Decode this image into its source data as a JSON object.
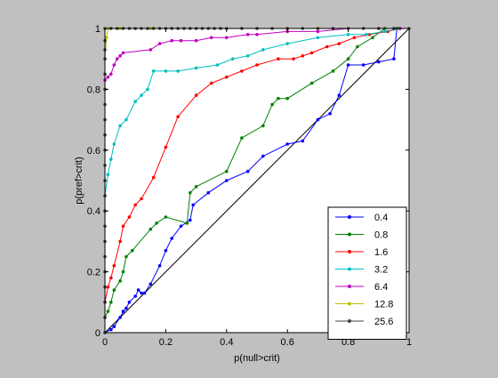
{
  "chart_data": {
    "type": "line",
    "title": "",
    "xlabel": "p(null>crit)",
    "ylabel": "p(pref>crit)",
    "xlim": [
      0,
      1
    ],
    "ylim": [
      0,
      1
    ],
    "xticks": [
      "0",
      "0.2",
      "0.4",
      "0.6",
      "0.8",
      "1"
    ],
    "yticks": [
      "0",
      "0.2",
      "0.4",
      "0.6",
      "0.8",
      "1"
    ],
    "grid": false,
    "legend_position": "bottom-right",
    "reference_line": {
      "x": [
        0,
        1
      ],
      "y": [
        0,
        1
      ],
      "color": "#000000"
    },
    "series": [
      {
        "name": "0.4",
        "color": "#0000ff",
        "x": [
          0,
          0.02,
          0.03,
          0.05,
          0.06,
          0.07,
          0.08,
          0.1,
          0.11,
          0.12,
          0.13,
          0.15,
          0.18,
          0.2,
          0.22,
          0.25,
          0.28,
          0.29,
          0.34,
          0.4,
          0.47,
          0.52,
          0.6,
          0.65,
          0.7,
          0.74,
          0.77,
          0.8,
          0.85,
          0.9,
          0.95,
          0.96
        ],
        "y": [
          0,
          0.01,
          0.02,
          0.05,
          0.07,
          0.08,
          0.1,
          0.12,
          0.14,
          0.13,
          0.13,
          0.16,
          0.22,
          0.27,
          0.31,
          0.35,
          0.37,
          0.42,
          0.46,
          0.5,
          0.53,
          0.58,
          0.62,
          0.63,
          0.7,
          0.72,
          0.78,
          0.88,
          0.88,
          0.89,
          0.9,
          1.0
        ]
      },
      {
        "name": "0.8",
        "color": "#008000",
        "x": [
          0,
          0.01,
          0.02,
          0.03,
          0.05,
          0.06,
          0.07,
          0.09,
          0.15,
          0.17,
          0.2,
          0.27,
          0.28,
          0.3,
          0.4,
          0.45,
          0.52,
          0.55,
          0.57,
          0.6,
          0.68,
          0.75,
          0.8,
          0.83,
          0.88,
          0.92,
          0.96
        ],
        "y": [
          0.05,
          0.07,
          0.1,
          0.14,
          0.17,
          0.2,
          0.25,
          0.27,
          0.34,
          0.36,
          0.38,
          0.36,
          0.46,
          0.48,
          0.53,
          0.64,
          0.68,
          0.75,
          0.77,
          0.77,
          0.82,
          0.86,
          0.9,
          0.94,
          0.97,
          1.0,
          1.0
        ]
      },
      {
        "name": "1.6",
        "color": "#ff0000",
        "x": [
          0,
          0.01,
          0.02,
          0.03,
          0.05,
          0.06,
          0.08,
          0.1,
          0.12,
          0.16,
          0.2,
          0.24,
          0.3,
          0.35,
          0.4,
          0.45,
          0.5,
          0.57,
          0.62,
          0.65,
          0.68,
          0.73,
          0.77,
          0.82,
          0.87,
          0.93,
          0.97
        ],
        "y": [
          0.1,
          0.15,
          0.18,
          0.22,
          0.3,
          0.35,
          0.38,
          0.42,
          0.44,
          0.51,
          0.61,
          0.71,
          0.78,
          0.82,
          0.84,
          0.86,
          0.88,
          0.9,
          0.9,
          0.91,
          0.92,
          0.94,
          0.95,
          0.97,
          0.98,
          0.99,
          1.0
        ]
      },
      {
        "name": "3.2",
        "color": "#00bfbf",
        "x": [
          0,
          0.01,
          0.02,
          0.03,
          0.05,
          0.07,
          0.1,
          0.12,
          0.14,
          0.16,
          0.2,
          0.24,
          0.3,
          0.37,
          0.42,
          0.47,
          0.52,
          0.6,
          0.7,
          0.8,
          0.86,
          0.92,
          0.97
        ],
        "y": [
          0.45,
          0.52,
          0.57,
          0.62,
          0.68,
          0.7,
          0.76,
          0.78,
          0.8,
          0.86,
          0.86,
          0.86,
          0.87,
          0.88,
          0.9,
          0.91,
          0.93,
          0.95,
          0.97,
          0.98,
          0.98,
          0.99,
          1.0
        ]
      },
      {
        "name": "6.4",
        "color": "#bf00bf",
        "x": [
          0,
          0.01,
          0.02,
          0.03,
          0.04,
          0.05,
          0.06,
          0.15,
          0.18,
          0.22,
          0.25,
          0.3,
          0.35,
          0.4,
          0.47,
          0.5,
          0.6,
          0.7,
          0.8,
          0.9,
          0.97
        ],
        "y": [
          0.83,
          0.84,
          0.85,
          0.88,
          0.9,
          0.91,
          0.92,
          0.93,
          0.95,
          0.96,
          0.96,
          0.96,
          0.97,
          0.97,
          0.98,
          0.98,
          0.99,
          0.99,
          1.0,
          1.0,
          1.0
        ]
      },
      {
        "name": "12.8",
        "color": "#bfbf00",
        "x": [
          0,
          0.0,
          0.0,
          0.005,
          0.01,
          0.05,
          0.1,
          0.15,
          0.2,
          0.3,
          0.4,
          0.5,
          0.6,
          0.7,
          0.8,
          0.9,
          1.0
        ],
        "y": [
          0.7,
          0.8,
          0.9,
          0.97,
          1.0,
          1.0,
          1.0,
          1.0,
          1.0,
          1.0,
          1.0,
          1.0,
          1.0,
          1.0,
          1.0,
          1.0,
          1.0
        ]
      },
      {
        "name": "25.6",
        "color": "#404040",
        "x": [
          0,
          0.0,
          0.0,
          0.0,
          0.0,
          0.0,
          0.0,
          0.0,
          0.0,
          0.0,
          0.0,
          0.0,
          0.0,
          0.0,
          0.0,
          0.0,
          0.0,
          0.0,
          0.0,
          0.0,
          0.0,
          0.0,
          0.02,
          0.04,
          0.06,
          0.08,
          0.1,
          0.12,
          0.14,
          0.16,
          0.18,
          0.2,
          0.22,
          0.24,
          0.26,
          0.28,
          0.3,
          0.32,
          0.34,
          0.36,
          0.38,
          0.4,
          0.45,
          0.5,
          0.55,
          0.6,
          0.65,
          0.7,
          0.75,
          0.8,
          0.85,
          0.9,
          0.95,
          1.0
        ],
        "y": [
          0,
          0.05,
          0.1,
          0.15,
          0.2,
          0.25,
          0.3,
          0.35,
          0.4,
          0.45,
          0.5,
          0.55,
          0.6,
          0.65,
          0.7,
          0.75,
          0.8,
          0.85,
          0.9,
          0.93,
          0.96,
          1.0,
          1.0,
          1.0,
          1.0,
          1.0,
          1.0,
          1.0,
          1.0,
          1.0,
          1.0,
          1.0,
          1.0,
          1.0,
          1.0,
          1.0,
          1.0,
          1.0,
          1.0,
          1.0,
          1.0,
          1.0,
          1.0,
          1.0,
          1.0,
          1.0,
          1.0,
          1.0,
          1.0,
          1.0,
          1.0,
          1.0,
          1.0,
          1.0
        ]
      }
    ]
  }
}
